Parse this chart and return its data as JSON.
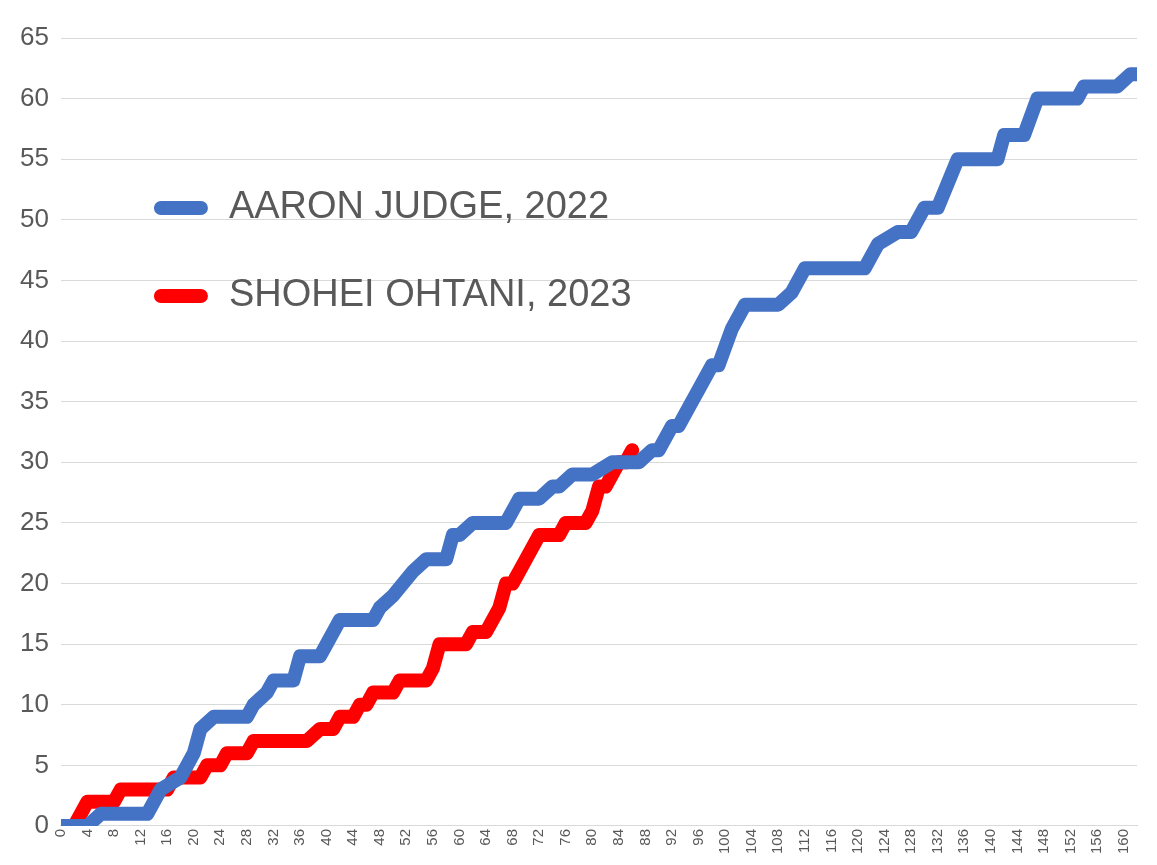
{
  "chart_data": {
    "type": "line",
    "xlim": [
      0,
      162
    ],
    "xticks": [
      0,
      4,
      8,
      12,
      16,
      20,
      24,
      28,
      32,
      36,
      40,
      44,
      48,
      52,
      56,
      60,
      64,
      68,
      72,
      76,
      80,
      84,
      88,
      92,
      96,
      100,
      104,
      108,
      112,
      116,
      120,
      124,
      128,
      132,
      136,
      140,
      144,
      148,
      152,
      156,
      160
    ],
    "ylim": [
      0,
      65
    ],
    "yticks": [
      0,
      5,
      10,
      15,
      20,
      25,
      30,
      35,
      40,
      45,
      50,
      55,
      60,
      65
    ],
    "grid": "y",
    "legend": "top left",
    "marker": "none",
    "line_style": "solid",
    "series": [
      {
        "name": "AARON JUDGE, 2022",
        "color": "#4472c4",
        "x": [
          0,
          4,
          6,
          13,
          15,
          18,
          20,
          21,
          23,
          28,
          29,
          31,
          32,
          35,
          36,
          39,
          40,
          42,
          47,
          48,
          50,
          53,
          55,
          58,
          59,
          60,
          62,
          67,
          69,
          72,
          74,
          75,
          77,
          80,
          83,
          87,
          89,
          90,
          92,
          93,
          95,
          96,
          98,
          99,
          101,
          103,
          108,
          110,
          112,
          121,
          123,
          126,
          128,
          130,
          132,
          135,
          141,
          142,
          145,
          147,
          153,
          154,
          159,
          161,
          162
        ],
        "values": [
          0,
          0,
          1,
          1,
          3,
          4,
          6,
          8,
          9,
          9,
          10,
          11,
          12,
          12,
          14,
          14,
          15,
          17,
          17,
          18,
          19,
          21,
          22,
          22,
          24,
          24,
          25,
          25,
          27,
          27,
          28,
          28,
          29,
          29,
          30,
          30,
          31,
          31,
          33,
          33,
          35,
          36,
          38,
          38,
          41,
          43,
          43,
          44,
          46,
          46,
          48,
          49,
          49,
          51,
          51,
          55,
          55,
          57,
          57,
          60,
          60,
          61,
          61,
          62,
          62
        ]
      },
      {
        "name": "SHOHEI OHTANI, 2023",
        "color": "#ff0000",
        "x": [
          0,
          2,
          4,
          8,
          9,
          16,
          17,
          21,
          22,
          24,
          25,
          28,
          29,
          37,
          39,
          41,
          42,
          44,
          45,
          46,
          47,
          50,
          51,
          55,
          56,
          57,
          61,
          62,
          64,
          66,
          67,
          68,
          70,
          72,
          74,
          75,
          76,
          79,
          80,
          81,
          82,
          84,
          85,
          86
        ],
        "values": [
          0,
          0,
          2,
          2,
          3,
          3,
          4,
          4,
          5,
          5,
          6,
          6,
          7,
          7,
          8,
          8,
          9,
          9,
          10,
          10,
          11,
          11,
          12,
          12,
          13,
          15,
          15,
          16,
          16,
          18,
          20,
          20,
          22,
          24,
          24,
          24,
          25,
          25,
          26,
          28,
          28,
          30,
          30,
          31
        ]
      }
    ]
  }
}
